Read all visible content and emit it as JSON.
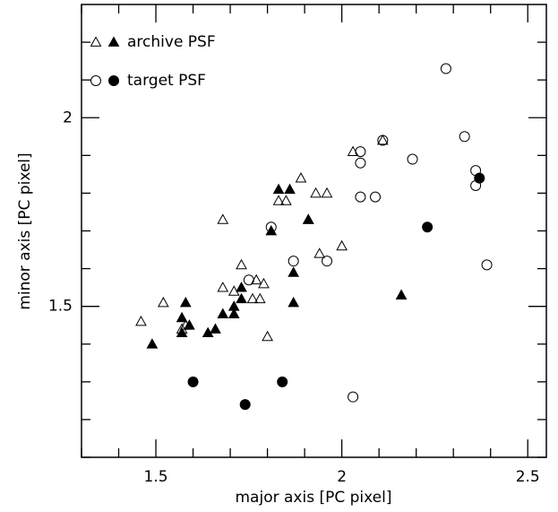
{
  "chart_data": {
    "type": "scatter",
    "xlabel": "major axis [PC pixel]",
    "ylabel": "minor axis [PC pixel]",
    "xlim": [
      1.3,
      2.55
    ],
    "ylim": [
      1.1,
      2.3
    ],
    "xticks": [
      1.5,
      2,
      2.5
    ],
    "yticks": [
      1.5,
      2
    ],
    "xminor": [
      1.3,
      1.4,
      1.6,
      1.7,
      1.8,
      1.9,
      2.1,
      2.2,
      2.3,
      2.4
    ],
    "yminor": [
      1.1,
      1.2,
      1.3,
      1.4,
      1.6,
      1.7,
      1.8,
      1.9,
      2.1,
      2.2
    ],
    "legend": "upper left",
    "color": "#000000",
    "series": [
      {
        "name": "archive PSF",
        "marker": "triangle",
        "x": [
          1.46,
          1.52,
          1.57,
          1.58,
          1.68,
          1.68,
          1.71,
          1.73,
          1.76,
          1.77,
          1.78,
          1.79,
          1.8,
          1.83,
          1.85,
          1.89,
          1.91,
          1.93,
          1.94,
          1.96,
          2.0,
          2.03,
          2.11,
          1.49,
          1.58,
          1.57,
          1.59,
          1.57,
          1.64,
          1.66,
          1.68,
          1.71,
          1.71,
          1.73,
          1.73,
          1.83,
          1.86,
          1.81,
          1.91,
          1.87,
          1.87,
          2.16
        ],
        "y": [
          1.46,
          1.51,
          1.44,
          1.45,
          1.73,
          1.55,
          1.54,
          1.61,
          1.52,
          1.57,
          1.52,
          1.56,
          1.42,
          1.78,
          1.78,
          1.84,
          1.73,
          1.8,
          1.64,
          1.8,
          1.66,
          1.91,
          1.94,
          1.4,
          1.51,
          1.47,
          1.45,
          1.43,
          1.43,
          1.44,
          1.48,
          1.48,
          1.5,
          1.52,
          1.55,
          1.81,
          1.81,
          1.7,
          1.73,
          1.59,
          1.51,
          1.53
        ],
        "filled": [
          false,
          false,
          false,
          false,
          false,
          false,
          false,
          false,
          false,
          false,
          false,
          false,
          false,
          false,
          false,
          false,
          false,
          false,
          false,
          false,
          false,
          false,
          false,
          true,
          true,
          true,
          true,
          true,
          true,
          true,
          true,
          true,
          true,
          true,
          true,
          true,
          true,
          true,
          true,
          true,
          true,
          true
        ]
      },
      {
        "name": "target PSF",
        "marker": "circle",
        "x": [
          1.81,
          1.87,
          1.96,
          1.75,
          2.03,
          2.05,
          2.05,
          2.05,
          2.09,
          2.11,
          2.19,
          2.28,
          2.33,
          2.36,
          2.36,
          2.39,
          1.6,
          1.74,
          1.84,
          2.23,
          2.37
        ],
        "y": [
          1.71,
          1.62,
          1.62,
          1.57,
          1.26,
          1.79,
          1.88,
          1.91,
          1.79,
          1.94,
          1.89,
          2.13,
          1.95,
          1.86,
          1.82,
          1.61,
          1.3,
          1.24,
          1.3,
          1.71,
          1.84
        ],
        "filled": [
          false,
          false,
          false,
          false,
          false,
          false,
          false,
          false,
          false,
          false,
          false,
          false,
          false,
          false,
          false,
          false,
          true,
          true,
          true,
          true,
          true
        ]
      }
    ]
  }
}
